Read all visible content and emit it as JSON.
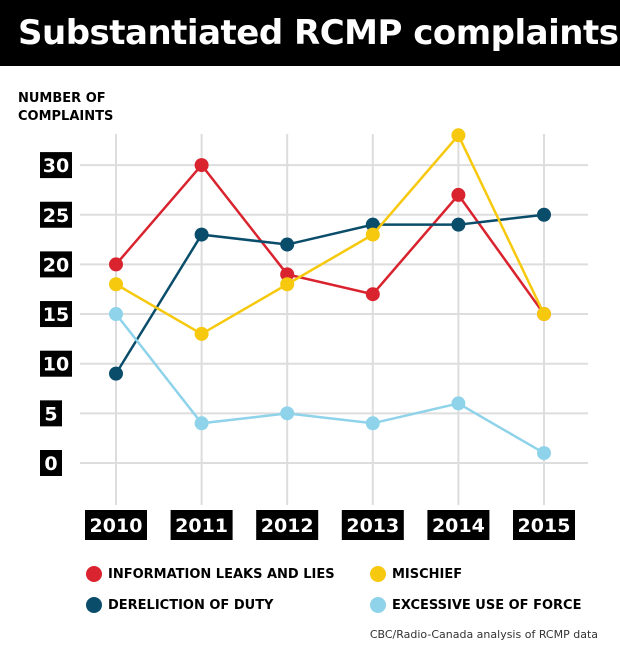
{
  "colors": {
    "info_leaks": "#d9232e",
    "dereliction": "#0a4d6b",
    "mischief": "#f6c90e",
    "excessive_force": "#8fd3ea",
    "grid": "#dddddd"
  },
  "chart_data": {
    "type": "line",
    "title": "Substantiated RCMP complaints",
    "ylabel": "NUMBER OF COMPLAINTS",
    "xlabel": "",
    "x": [
      "2010",
      "2011",
      "2012",
      "2013",
      "2014",
      "2015"
    ],
    "ylim": [
      0,
      30
    ],
    "yticks": [
      0,
      5,
      10,
      15,
      20,
      25,
      30
    ],
    "grid": true,
    "series": [
      {
        "name": "INFORMATION LEAKS AND LIES",
        "color_key": "info_leaks",
        "values": [
          20,
          30,
          19,
          17,
          27,
          15
        ]
      },
      {
        "name": "DERELICTION OF DUTY",
        "color_key": "dereliction",
        "values": [
          9,
          23,
          22,
          24,
          24,
          25
        ]
      },
      {
        "name": "MISCHIEF",
        "color_key": "mischief",
        "values": [
          18,
          13,
          18,
          23,
          33,
          15
        ]
      },
      {
        "name": "EXCESSIVE USE OF FORCE",
        "color_key": "excessive_force",
        "values": [
          15,
          4,
          5,
          4,
          6,
          1
        ]
      }
    ],
    "source": "CBC/Radio-Canada analysis of RCMP data"
  }
}
